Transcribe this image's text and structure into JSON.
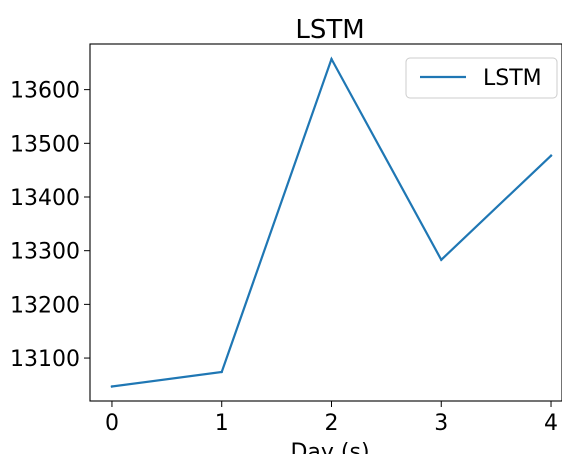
{
  "chart_data": {
    "type": "line",
    "title": "LSTM",
    "xlabel": "Day (s)",
    "ylabel": "",
    "x": [
      0,
      1,
      2,
      3,
      4
    ],
    "xticks": [
      "0",
      "1",
      "2",
      "3",
      "4"
    ],
    "yticks": [
      13100,
      13200,
      13300,
      13400,
      13500,
      13600
    ],
    "ytick_labels": [
      "13100",
      "13200",
      "13300",
      "13400",
      "13500",
      "13600"
    ],
    "ylim": [
      13020,
      13685
    ],
    "xlim": [
      -0.2,
      4.1
    ],
    "series": [
      {
        "name": "LSTM",
        "values": [
          13047,
          13074,
          13657,
          13283,
          13477
        ],
        "color": "#1f77b4"
      }
    ],
    "legend": "top-right",
    "grid": false
  }
}
